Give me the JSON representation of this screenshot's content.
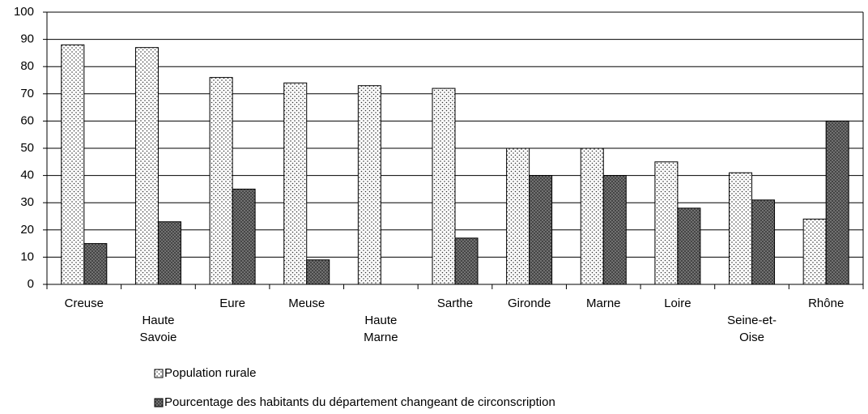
{
  "chart_data": {
    "type": "bar",
    "categories": [
      [
        "Creuse"
      ],
      [
        "Haute",
        "Savoie"
      ],
      [
        "Eure"
      ],
      [
        "Meuse"
      ],
      [
        "Haute",
        "Marne"
      ],
      [
        "Sarthe"
      ],
      [
        "Gironde"
      ],
      [
        "Marne"
      ],
      [
        "Loire"
      ],
      [
        "Seine-et-",
        "Oise"
      ],
      [
        "Rhône"
      ]
    ],
    "series": [
      {
        "name": "Population rurale",
        "color": "#ffffff",
        "values": [
          88,
          87,
          76,
          74,
          73,
          72,
          50,
          50,
          45,
          41,
          24
        ]
      },
      {
        "name": "Pourcentage des habitants du département changeant de circonscription",
        "color": "#7a7a7a",
        "values": [
          15,
          23,
          35,
          9,
          0,
          17,
          40,
          40,
          28,
          31,
          60
        ]
      }
    ],
    "ylim": [
      0,
      100
    ],
    "yticks": [
      0,
      10,
      20,
      30,
      40,
      50,
      60,
      70,
      80,
      90,
      100
    ],
    "grid": true,
    "legend": "bottom-left"
  }
}
